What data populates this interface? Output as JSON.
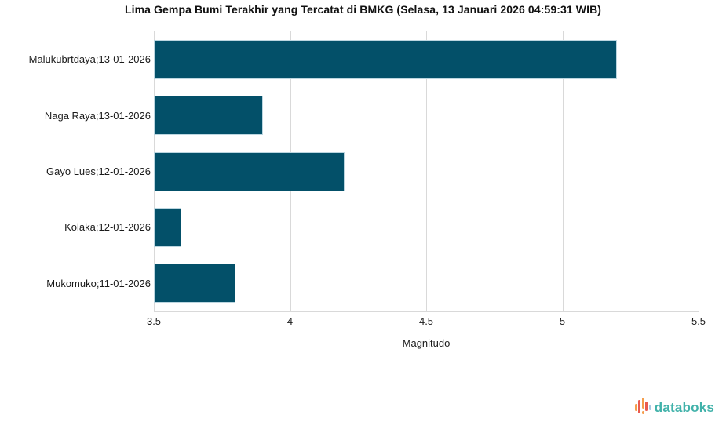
{
  "title": "Lima Gempa Bumi Terakhir yang Tercatat di BMKG (Selasa, 13 Januari 2026 04:59:31 WIB)",
  "chart_data": {
    "type": "bar",
    "orientation": "horizontal",
    "title": "Lima Gempa Bumi Terakhir yang Tercatat di BMKG (Selasa, 13 Januari 2026 04:59:31 WIB)",
    "categories": [
      "Malukubrtdaya;13-01-2026",
      "Naga Raya;13-01-2026",
      "Gayo Lues;12-01-2026",
      "Kolaka;12-01-2026",
      "Mukomuko;11-01-2026"
    ],
    "values": [
      5.2,
      3.9,
      4.2,
      3.6,
      3.8
    ],
    "xlabel": "Magnitudo",
    "ylabel": "",
    "xlim": [
      3.5,
      5.5
    ],
    "xticks": [
      3.5,
      4,
      4.5,
      5,
      5.5
    ],
    "xtick_labels": [
      "3.5",
      "4",
      "4.5",
      "5",
      "5.5"
    ],
    "bar_color": "#035069",
    "bar_border_color": "#bcd6e0",
    "gridline_color": "#d9d9d9",
    "grid": "vertical-only",
    "legend_position": "none"
  },
  "branding": {
    "logo_text": "databoks",
    "logo_text_color": "#41b2aa",
    "logo_bar_colors": [
      "#F59E4C",
      "#EA5B4F",
      "#F59E4C",
      "#EA5B4F",
      "#A9C7E2"
    ],
    "logo_dot_color": "#F59E4C"
  }
}
